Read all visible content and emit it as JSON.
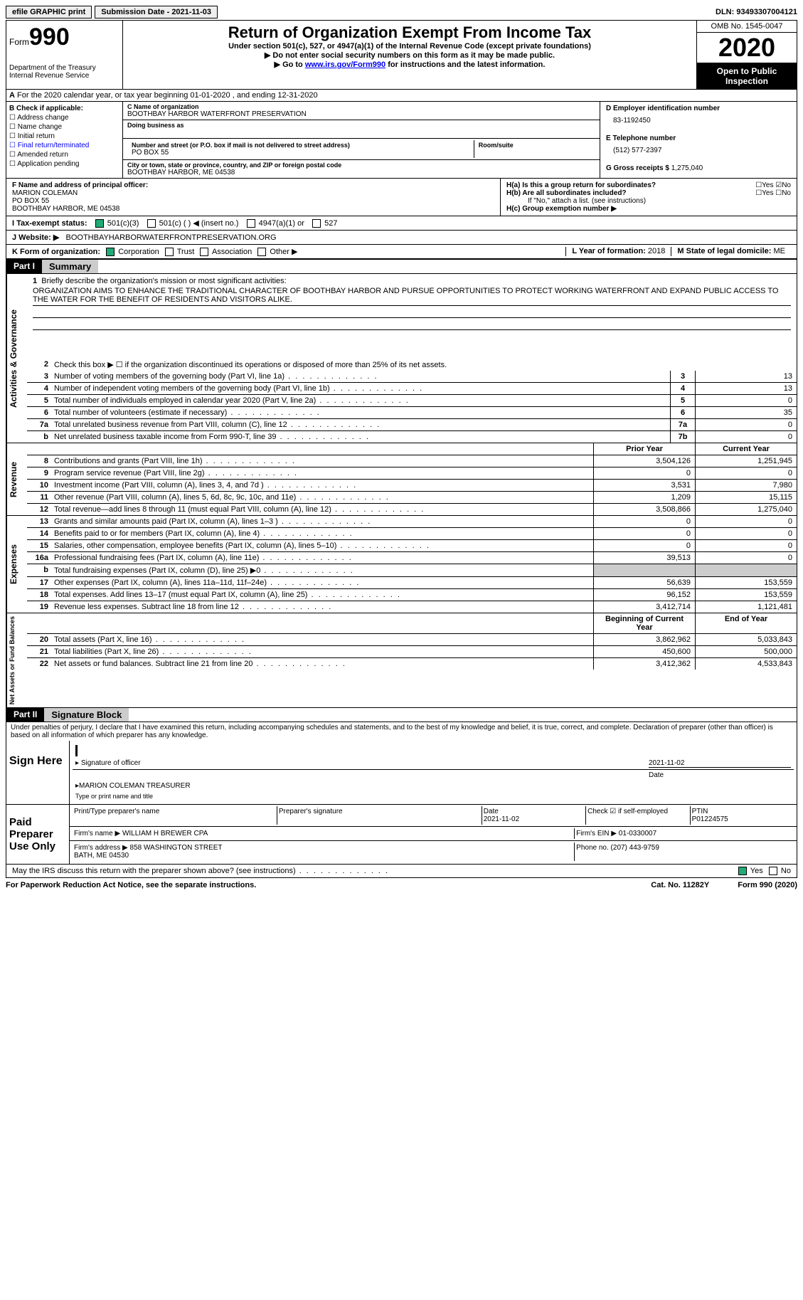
{
  "topbar": {
    "efile": "efile GRAPHIC print",
    "sub_date_label": "Submission Date - 2021-11-03",
    "dln": "DLN: 93493307004121"
  },
  "header": {
    "form_label": "Form",
    "form_num": "990",
    "dept": "Department of the Treasury\nInternal Revenue Service",
    "title": "Return of Organization Exempt From Income Tax",
    "subtitle1": "Under section 501(c), 527, or 4947(a)(1) of the Internal Revenue Code (except private foundations)",
    "subtitle2": "▶ Do not enter social security numbers on this form as it may be made public.",
    "subtitle3_pre": "▶ Go to ",
    "subtitle3_link": "www.irs.gov/Form990",
    "subtitle3_post": " for instructions and the latest information.",
    "omb": "OMB No. 1545-0047",
    "year": "2020",
    "open": "Open to Public Inspection"
  },
  "section_a": "For the 2020 calendar year, or tax year beginning 01-01-2020   , and ending 12-31-2020",
  "box_b": {
    "title": "B Check if applicable:",
    "items": [
      "Address change",
      "Name change",
      "Initial return",
      "Final return/terminated",
      "Amended return",
      "Application pending"
    ]
  },
  "box_c": {
    "name_label": "C Name of organization",
    "name": "BOOTHBAY HARBOR WATERFRONT PRESERVATION",
    "dba_label": "Doing business as",
    "dba": "",
    "addr_label": "Number and street (or P.O. box if mail is not delivered to street address)",
    "addr": "PO BOX 55",
    "room_label": "Room/suite",
    "city_label": "City or town, state or province, country, and ZIP or foreign postal code",
    "city": "BOOTHBAY HARBOR, ME  04538"
  },
  "box_d": {
    "ein_label": "D Employer identification number",
    "ein": "83-1192450",
    "tel_label": "E Telephone number",
    "tel": "(512) 577-2397",
    "gross_label": "G Gross receipts $",
    "gross": "1,275,040"
  },
  "box_f": {
    "label": "F Name and address of principal officer:",
    "name": "MARION COLEMAN",
    "addr1": "PO BOX 55",
    "addr2": "BOOTHBAY HARBOR, ME  04538"
  },
  "box_h": {
    "ha": "H(a)  Is this a group return for subordinates?",
    "hb": "H(b)  Are all subordinates included?",
    "hb_note": "If \"No,\" attach a list. (see instructions)",
    "hc": "H(c)  Group exemption number ▶"
  },
  "tax_status": {
    "label": "I  Tax-exempt status:",
    "opts": [
      "501(c)(3)",
      "501(c) (  ) ◀ (insert no.)",
      "4947(a)(1) or",
      "527"
    ]
  },
  "website": {
    "label": "J  Website: ▶",
    "value": "BOOTHBAYHARBORWATERFRONTPRESERVATION.ORG"
  },
  "line_k": {
    "label": "K Form of organization:",
    "opts": [
      "Corporation",
      "Trust",
      "Association",
      "Other ▶"
    ],
    "year_label": "L Year of formation:",
    "year": "2018",
    "state_label": "M State of legal domicile:",
    "state": "ME"
  },
  "part1": {
    "header": "Part I",
    "title": "Summary",
    "q1_label": "1",
    "q1_text": "Briefly describe the organization's mission or most significant activities:",
    "q1_val": "ORGANIZATION AIMS TO ENHANCE THE TRADITIONAL CHARACTER OF BOOTHBAY HARBOR AND PURSUE OPPORTUNITIES TO PROTECT WORKING WATERFRONT AND EXPAND PUBLIC ACCESS TO THE WATER FOR THE BENEFIT OF RESIDENTS AND VISITORS ALIKE.",
    "q2": "Check this box ▶ ☐  if the organization discontinued its operations or disposed of more than 25% of its net assets.",
    "sidebar_gov": "Activities & Governance",
    "sidebar_rev": "Revenue",
    "sidebar_exp": "Expenses",
    "sidebar_net": "Net Assets or Fund Balances",
    "prior_year": "Prior Year",
    "current_year": "Current Year",
    "begin_year": "Beginning of Current Year",
    "end_year": "End of Year",
    "lines_gov": [
      {
        "n": "3",
        "t": "Number of voting members of the governing body (Part VI, line 1a)",
        "box": "3",
        "v": "13"
      },
      {
        "n": "4",
        "t": "Number of independent voting members of the governing body (Part VI, line 1b)",
        "box": "4",
        "v": "13"
      },
      {
        "n": "5",
        "t": "Total number of individuals employed in calendar year 2020 (Part V, line 2a)",
        "box": "5",
        "v": "0"
      },
      {
        "n": "6",
        "t": "Total number of volunteers (estimate if necessary)",
        "box": "6",
        "v": "35"
      },
      {
        "n": "7a",
        "t": "Total unrelated business revenue from Part VIII, column (C), line 12",
        "box": "7a",
        "v": "0"
      },
      {
        "n": "b",
        "t": "Net unrelated business taxable income from Form 990-T, line 39",
        "box": "7b",
        "v": "0"
      }
    ],
    "lines_rev": [
      {
        "n": "8",
        "t": "Contributions and grants (Part VIII, line 1h)",
        "py": "3,504,126",
        "cy": "1,251,945"
      },
      {
        "n": "9",
        "t": "Program service revenue (Part VIII, line 2g)",
        "py": "0",
        "cy": "0"
      },
      {
        "n": "10",
        "t": "Investment income (Part VIII, column (A), lines 3, 4, and 7d )",
        "py": "3,531",
        "cy": "7,980"
      },
      {
        "n": "11",
        "t": "Other revenue (Part VIII, column (A), lines 5, 6d, 8c, 9c, 10c, and 11e)",
        "py": "1,209",
        "cy": "15,115"
      },
      {
        "n": "12",
        "t": "Total revenue—add lines 8 through 11 (must equal Part VIII, column (A), line 12)",
        "py": "3,508,866",
        "cy": "1,275,040"
      }
    ],
    "lines_exp": [
      {
        "n": "13",
        "t": "Grants and similar amounts paid (Part IX, column (A), lines 1–3 )",
        "py": "0",
        "cy": "0"
      },
      {
        "n": "14",
        "t": "Benefits paid to or for members (Part IX, column (A), line 4)",
        "py": "0",
        "cy": "0"
      },
      {
        "n": "15",
        "t": "Salaries, other compensation, employee benefits (Part IX, column (A), lines 5–10)",
        "py": "0",
        "cy": "0"
      },
      {
        "n": "16a",
        "t": "Professional fundraising fees (Part IX, column (A), line 11e)",
        "py": "39,513",
        "cy": "0"
      },
      {
        "n": "b",
        "t": "Total fundraising expenses (Part IX, column (D), line 25) ▶0",
        "py": "",
        "cy": "",
        "shade": true
      },
      {
        "n": "17",
        "t": "Other expenses (Part IX, column (A), lines 11a–11d, 11f–24e)",
        "py": "56,639",
        "cy": "153,559"
      },
      {
        "n": "18",
        "t": "Total expenses. Add lines 13–17 (must equal Part IX, column (A), line 25)",
        "py": "96,152",
        "cy": "153,559"
      },
      {
        "n": "19",
        "t": "Revenue less expenses. Subtract line 18 from line 12",
        "py": "3,412,714",
        "cy": "1,121,481"
      }
    ],
    "lines_net": [
      {
        "n": "20",
        "t": "Total assets (Part X, line 16)",
        "py": "3,862,962",
        "cy": "5,033,843"
      },
      {
        "n": "21",
        "t": "Total liabilities (Part X, line 26)",
        "py": "450,600",
        "cy": "500,000"
      },
      {
        "n": "22",
        "t": "Net assets or fund balances. Subtract line 21 from line 20",
        "py": "3,412,362",
        "cy": "4,533,843"
      }
    ]
  },
  "part2": {
    "header": "Part II",
    "title": "Signature Block",
    "penalty": "Under penalties of perjury, I declare that I have examined this return, including accompanying schedules and statements, and to the best of my knowledge and belief, it is true, correct, and complete. Declaration of preparer (other than officer) is based on all information of which preparer has any knowledge.",
    "sign_here": "Sign Here",
    "sig_officer": "Signature of officer",
    "sig_date": "2021-11-02",
    "sig_date_label": "Date",
    "sig_name": "MARION COLEMAN  TREASURER",
    "sig_name_label": "Type or print name and title",
    "paid_prep": "Paid Preparer Use Only",
    "prep_name_label": "Print/Type preparer's name",
    "prep_sig_label": "Preparer's signature",
    "prep_date_label": "Date",
    "prep_date": "2021-11-02",
    "prep_check_label": "Check ☑ if self-employed",
    "ptin_label": "PTIN",
    "ptin": "P01224575",
    "firm_name_label": "Firm's name    ▶",
    "firm_name": "WILLIAM H BREWER CPA",
    "firm_ein_label": "Firm's EIN ▶",
    "firm_ein": "01-0330007",
    "firm_addr_label": "Firm's address ▶",
    "firm_addr": "858 WASHINGTON STREET\nBATH, ME  04530",
    "phone_label": "Phone no.",
    "phone": "(207) 443-9759",
    "discuss": "May the IRS discuss this return with the preparer shown above? (see instructions)"
  },
  "footer": {
    "left": "For Paperwork Reduction Act Notice, see the separate instructions.",
    "mid": "Cat. No. 11282Y",
    "right": "Form 990 (2020)"
  }
}
